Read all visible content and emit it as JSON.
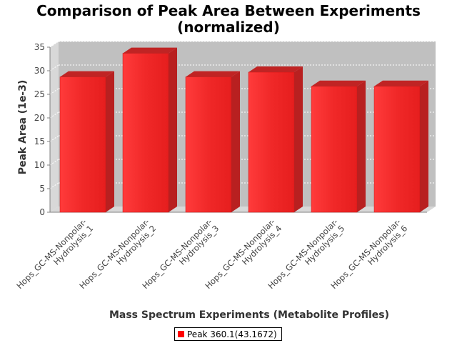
{
  "chart_data": {
    "type": "bar",
    "title": "Comparison of Peak Area Between Experiments",
    "subtitle": "(normalized)",
    "xlabel": "Mass Spectrum Experiments (Metabolite Profiles)",
    "ylabel": "Peak Area (1e-3)",
    "ylim": [
      0,
      35
    ],
    "yticks": [
      0,
      5,
      10,
      15,
      20,
      25,
      30,
      35
    ],
    "categories": [
      [
        "Hops_GC-MS-Nonpolar-",
        "Hydrolysis_1"
      ],
      [
        "Hops_GC-MS-Nonpolar-",
        "Hydrolysis_2"
      ],
      [
        "Hops_GC-MS-Nonpolar-",
        "Hydrolysis_3"
      ],
      [
        "Hops_GC-MS-Nonpolar-",
        "Hydrolysis_4"
      ],
      [
        "Hops_GC-MS-Nonpolar-",
        "Hydrolysis_5"
      ],
      [
        "Hops_GC-MS-Nonpolar-",
        "Hydrolysis_6"
      ]
    ],
    "series": [
      {
        "name": "Peak 360.1(43.1672)",
        "color": "#ff0000",
        "values": [
          28.7,
          33.7,
          28.7,
          29.7,
          26.7,
          26.7
        ]
      }
    ],
    "grid": true,
    "legend_position": "bottom"
  }
}
